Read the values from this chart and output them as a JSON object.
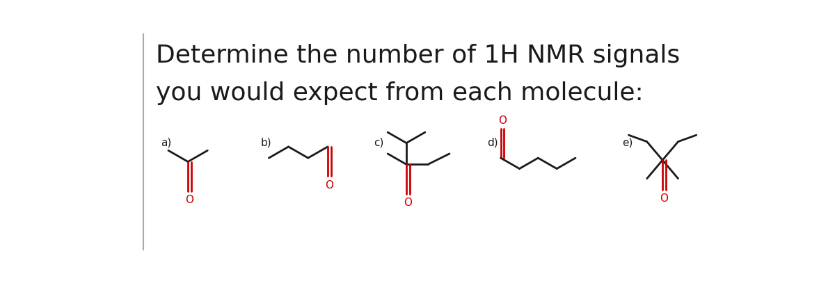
{
  "title_line1": "Determine the number of 1H NMR signals",
  "title_line2": "you would expect from each molecule:",
  "title_fontsize": 26,
  "label_fontsize": 11,
  "bg_color": "#ffffff",
  "line_color": "#1a1a1a",
  "carbonyl_color": "#cc0000",
  "oxygen_color": "#cc0000",
  "linewidth": 2.0,
  "labels": [
    "a)",
    "b)",
    "c)",
    "d)",
    "e)"
  ]
}
